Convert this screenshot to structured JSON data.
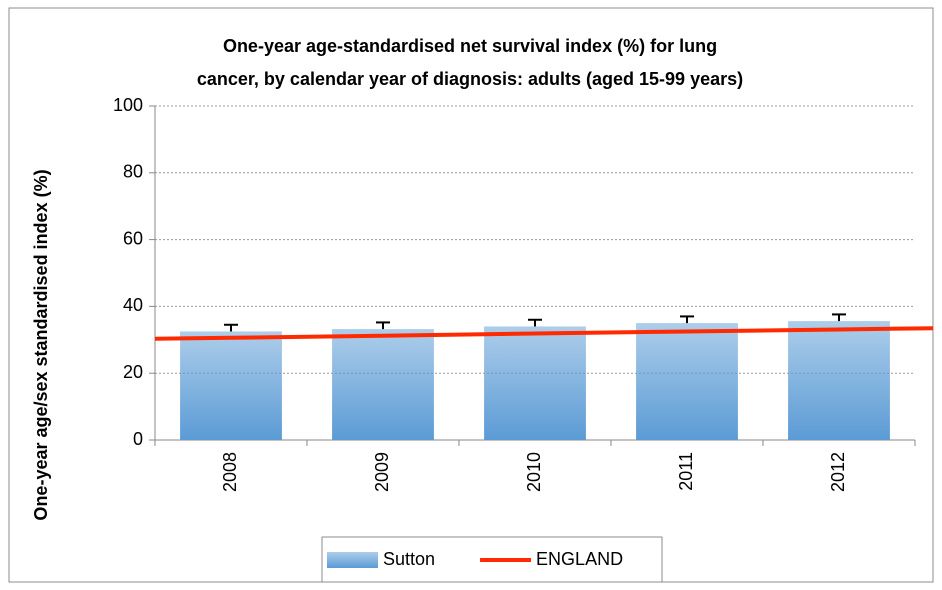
{
  "chart_data": {
    "type": "bar",
    "title": [
      "One-year age-standardised net survival index (%) for lung",
      "cancer, by calendar year of diagnosis: adults (aged 15-99 years)"
    ],
    "y_axis_label": "One-year age/sex standardised index (%)",
    "categories": [
      "2008",
      "2009",
      "2010",
      "2011",
      "2012"
    ],
    "series": [
      {
        "name": "Sutton",
        "type": "bar",
        "color": "#5b9bd5",
        "values": [
          32.5,
          33.2,
          34.0,
          35.0,
          35.6
        ],
        "errors": [
          2.0,
          2.0,
          2.0,
          2.0,
          2.0
        ]
      },
      {
        "name": "ENGLAND",
        "type": "line",
        "color": "#ff2a00",
        "values": [
          30.6,
          31.2,
          31.9,
          32.5,
          33.1
        ]
      }
    ],
    "ylim": [
      0,
      100
    ],
    "yticks": [
      0,
      20,
      40,
      60,
      80,
      100
    ],
    "grid": true,
    "legend": "bottom"
  }
}
